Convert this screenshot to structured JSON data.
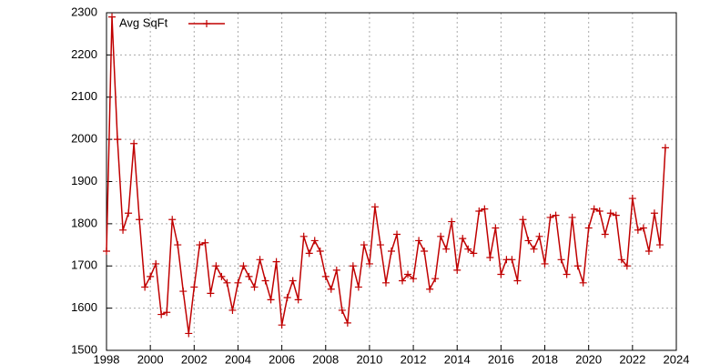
{
  "chart_data": {
    "type": "line",
    "x": [
      1998,
      1998.25,
      1998.5,
      1998.75,
      1999,
      1999.25,
      1999.5,
      1999.75,
      2000,
      2000.25,
      2000.5,
      2000.75,
      2001,
      2001.25,
      2001.5,
      2001.75,
      2002,
      2002.25,
      2002.5,
      2002.75,
      2003,
      2003.25,
      2003.5,
      2003.75,
      2004,
      2004.25,
      2004.5,
      2004.75,
      2005,
      2005.25,
      2005.5,
      2005.75,
      2006,
      2006.25,
      2006.5,
      2006.75,
      2007,
      2007.25,
      2007.5,
      2007.75,
      2008,
      2008.25,
      2008.5,
      2008.75,
      2009,
      2009.25,
      2009.5,
      2009.75,
      2010,
      2010.25,
      2010.5,
      2010.75,
      2011,
      2011.25,
      2011.5,
      2011.75,
      2012,
      2012.25,
      2012.5,
      2012.75,
      2013,
      2013.25,
      2013.5,
      2013.75,
      2014,
      2014.25,
      2014.5,
      2014.75,
      2015,
      2015.25,
      2015.5,
      2015.75,
      2016,
      2016.25,
      2016.5,
      2016.75,
      2017,
      2017.25,
      2017.5,
      2017.75,
      2018,
      2018.25,
      2018.5,
      2018.75,
      2019,
      2019.25,
      2019.5,
      2019.75,
      2020,
      2020.25,
      2020.5,
      2020.75,
      2021,
      2021.25,
      2021.5,
      2021.75,
      2022,
      2022.25,
      2022.5,
      2022.75,
      2023,
      2023.25,
      2023.5
    ],
    "series": [
      {
        "name": "Avg SqFt",
        "color": "#c00000",
        "values": [
          1735,
          2290,
          2000,
          1785,
          1825,
          1990,
          1810,
          1650,
          1675,
          1705,
          1585,
          1590,
          1810,
          1750,
          1640,
          1540,
          1650,
          1750,
          1755,
          1635,
          1700,
          1675,
          1660,
          1595,
          1660,
          1700,
          1675,
          1650,
          1715,
          1665,
          1620,
          1710,
          1560,
          1625,
          1665,
          1620,
          1770,
          1730,
          1760,
          1735,
          1675,
          1645,
          1690,
          1595,
          1565,
          1700,
          1650,
          1750,
          1705,
          1840,
          1750,
          1660,
          1735,
          1775,
          1665,
          1680,
          1670,
          1760,
          1735,
          1645,
          1670,
          1770,
          1740,
          1805,
          1690,
          1765,
          1740,
          1730,
          1830,
          1835,
          1720,
          1790,
          1680,
          1715,
          1715,
          1665,
          1810,
          1760,
          1740,
          1770,
          1705,
          1815,
          1820,
          1715,
          1680,
          1815,
          1700,
          1660,
          1790,
          1835,
          1830,
          1775,
          1825,
          1820,
          1715,
          1700,
          1860,
          1785,
          1790,
          1735,
          1825,
          1750,
          1980
        ]
      }
    ],
    "xlim": [
      1998,
      2024
    ],
    "xticks": [
      1998,
      2000,
      2002,
      2004,
      2006,
      2008,
      2010,
      2012,
      2014,
      2016,
      2018,
      2020,
      2022,
      2024
    ],
    "ylim": [
      1500,
      2300
    ],
    "yticks": [
      1500,
      1600,
      1700,
      1800,
      1900,
      2000,
      2100,
      2200,
      2300
    ],
    "grid": true,
    "legend": "top-left"
  }
}
